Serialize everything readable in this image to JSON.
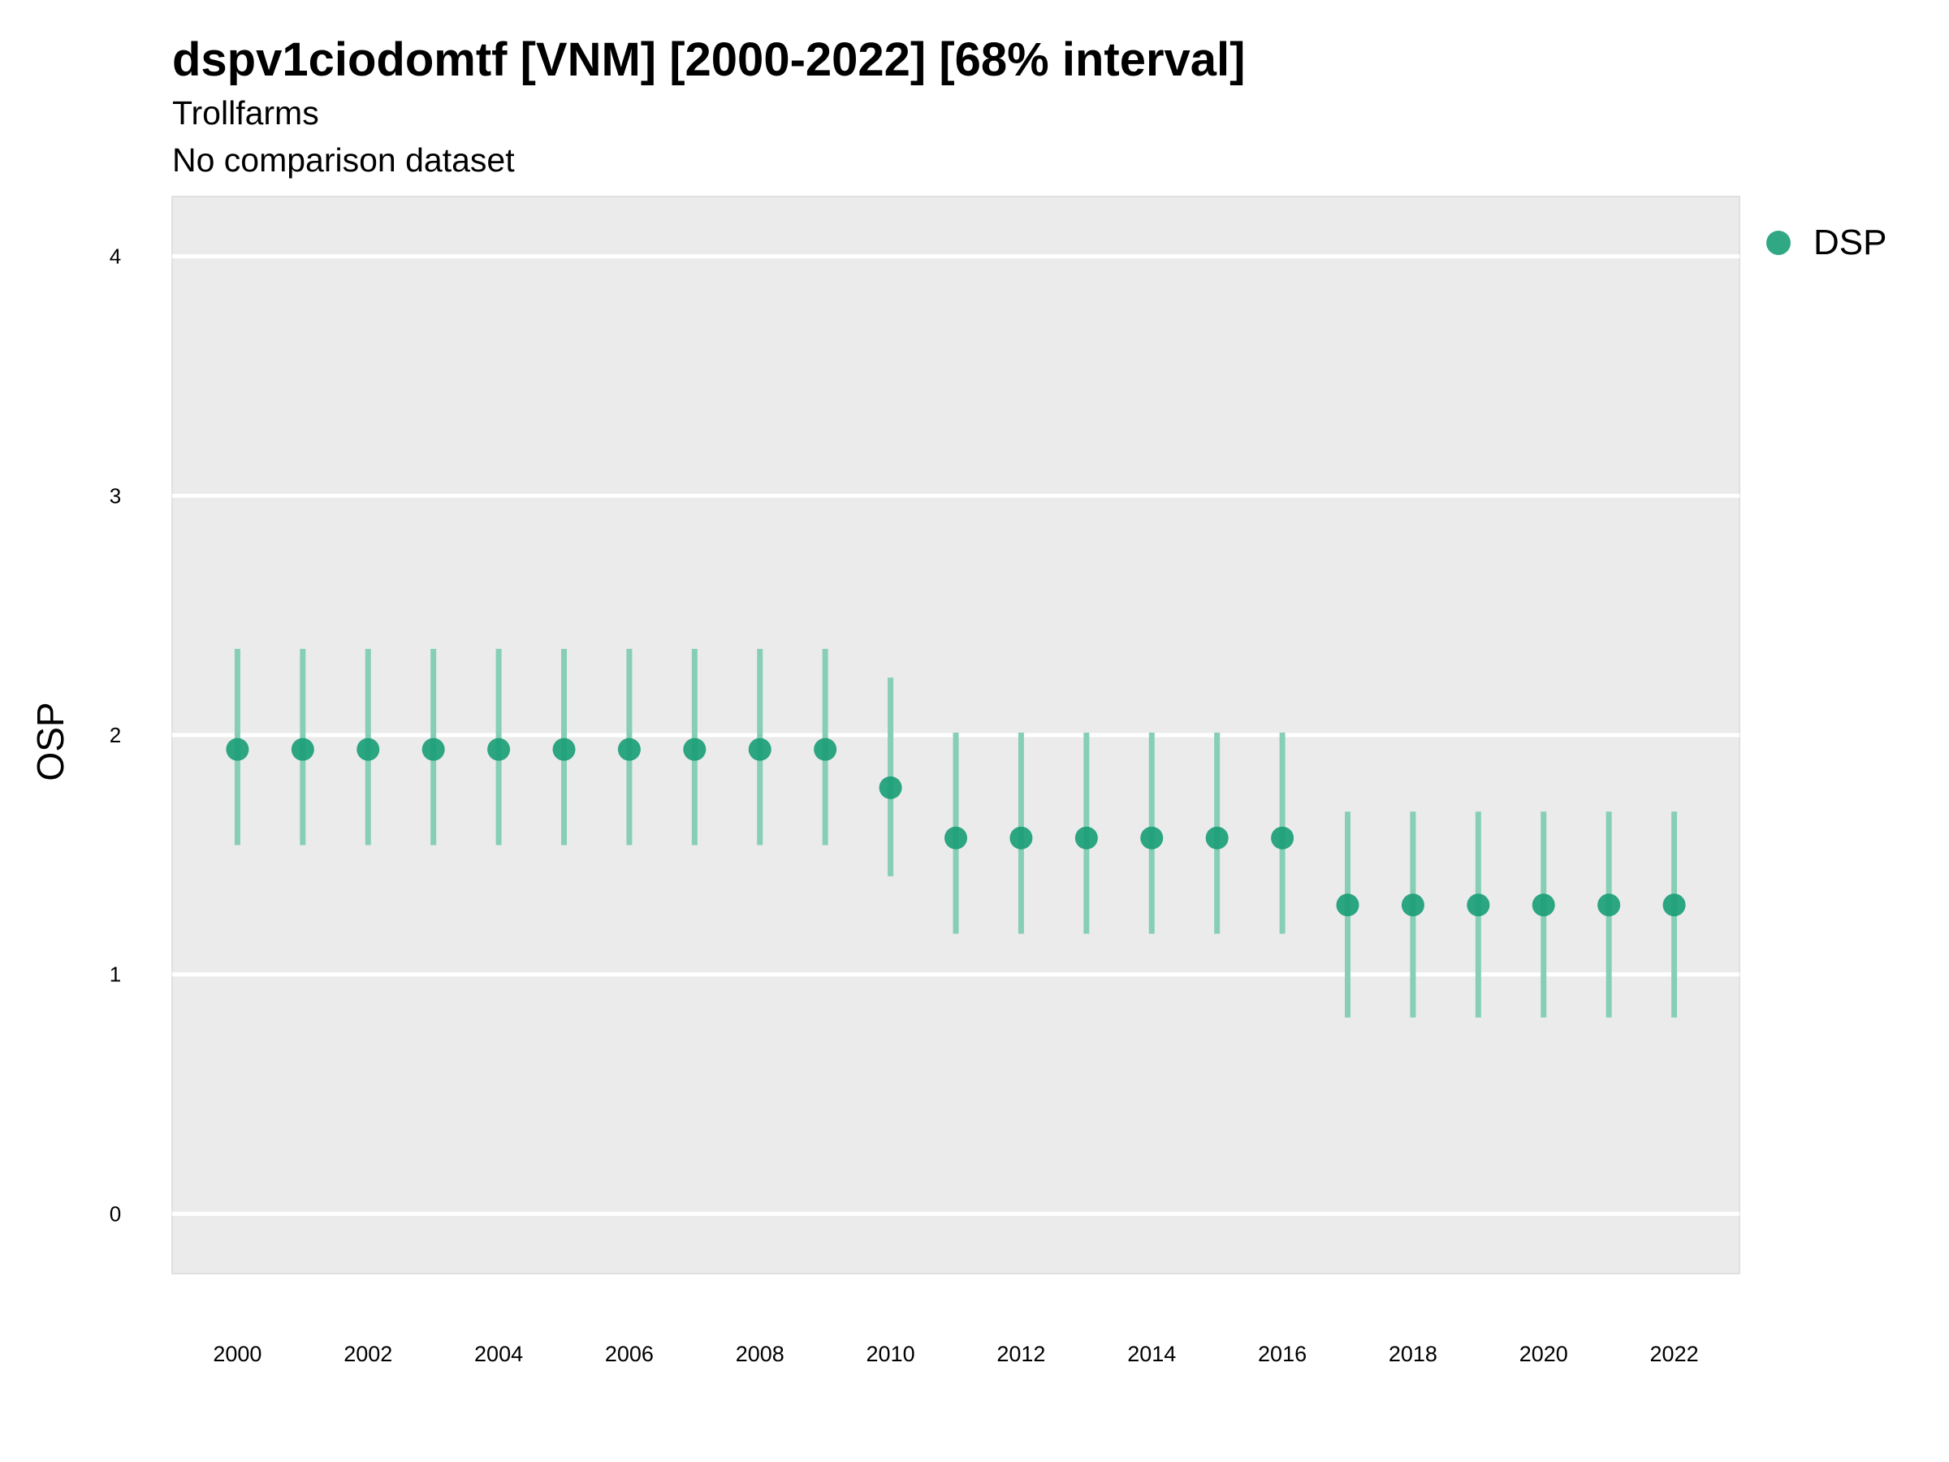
{
  "title": "dspv1ciodomtf [VNM] [2000-2022] [68% interval]",
  "subtitle": "Trollfarms",
  "caption": "No comparison dataset",
  "colors": {
    "panel_background": "#EBEBEB",
    "gridline": "#FFFFFF",
    "point": "#1B9E77",
    "errorbar": "#86CFB5"
  },
  "legend": {
    "label": "DSP",
    "position": "right"
  },
  "chart_data": {
    "type": "scatter",
    "title": "dspv1ciodomtf [VNM] [2000-2022] [68% interval]",
    "xlabel": "",
    "ylabel": "OSP",
    "xlim": [
      1999,
      2023
    ],
    "ylim": [
      -0.25,
      4.25
    ],
    "x_ticks": [
      2000,
      2002,
      2004,
      2006,
      2008,
      2010,
      2012,
      2014,
      2016,
      2018,
      2020,
      2022
    ],
    "y_ticks": [
      0,
      1,
      2,
      3,
      4
    ],
    "grid": true,
    "series": [
      {
        "name": "DSP",
        "x": [
          2000,
          2001,
          2002,
          2003,
          2004,
          2005,
          2006,
          2007,
          2008,
          2009,
          2010,
          2011,
          2012,
          2013,
          2014,
          2015,
          2016,
          2017,
          2018,
          2019,
          2020,
          2021,
          2022
        ],
        "y": [
          1.94,
          1.94,
          1.94,
          1.94,
          1.94,
          1.94,
          1.94,
          1.94,
          1.94,
          1.94,
          1.78,
          1.57,
          1.57,
          1.57,
          1.57,
          1.57,
          1.57,
          1.29,
          1.29,
          1.29,
          1.29,
          1.29,
          1.29
        ],
        "lower": [
          1.54,
          1.54,
          1.54,
          1.54,
          1.54,
          1.54,
          1.54,
          1.54,
          1.54,
          1.54,
          1.41,
          1.17,
          1.17,
          1.17,
          1.17,
          1.17,
          1.17,
          0.82,
          0.82,
          0.82,
          0.82,
          0.82,
          0.82
        ],
        "upper": [
          2.36,
          2.36,
          2.36,
          2.36,
          2.36,
          2.36,
          2.36,
          2.36,
          2.36,
          2.36,
          2.24,
          2.01,
          2.01,
          2.01,
          2.01,
          2.01,
          2.01,
          1.68,
          1.68,
          1.68,
          1.68,
          1.68,
          1.68
        ]
      }
    ]
  }
}
